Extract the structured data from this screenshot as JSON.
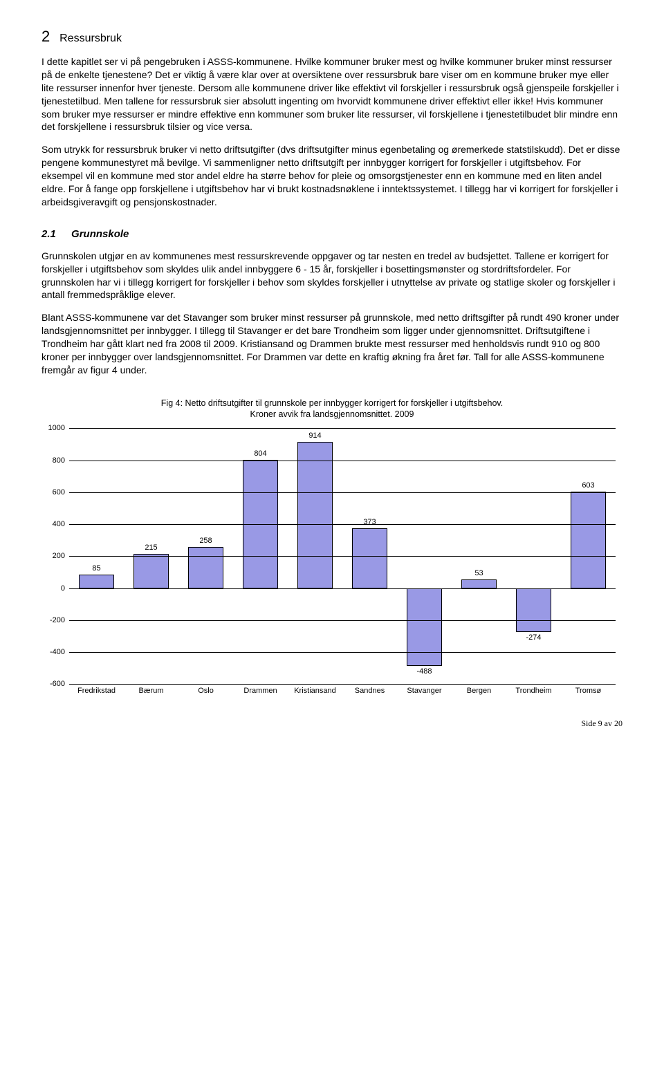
{
  "section": {
    "number": "2",
    "title": "Ressursbruk"
  },
  "paragraphs": {
    "p1": "I dette kapitlet ser vi på pengebruken i ASSS-kommunene. Hvilke kommuner bruker mest og hvilke kommuner bruker minst ressurser på de enkelte tjenestene? Det er viktig å være klar over at oversiktene over ressursbruk bare viser om en kommune bruker mye eller lite ressurser innenfor hver tjeneste. Dersom alle kommunene driver like effektivt vil forskjeller i ressursbruk også gjenspeile forskjeller i tjenestetilbud. Men tallene for ressursbruk sier absolutt ingenting om hvorvidt kommunene driver effektivt eller ikke! Hvis kommuner som bruker mye ressurser er mindre effektive enn kommuner som bruker lite ressurser, vil forskjellene i tjenestetilbudet blir mindre enn det forskjellene i ressursbruk tilsier og vice versa.",
    "p2": "Som utrykk for ressursbruk bruker vi netto driftsutgifter (dvs driftsutgifter minus egenbetaling og øremerkede statstilskudd). Det er disse pengene kommunestyret må bevilge. Vi sammenligner netto driftsutgift per innbygger korrigert for forskjeller i utgiftsbehov. For eksempel vil en kommune med stor andel eldre ha større behov for pleie og omsorgstjenester enn en kommune med en liten andel eldre. For å fange opp forskjellene i utgiftsbehov har vi brukt kostnadsnøklene i inntektssystemet. I tillegg har vi korrigert for forskjeller i arbeidsgiveravgift og pensjonskostnader.",
    "p3": "Grunnskolen utgjør en av kommunenes mest ressurskrevende oppgaver og tar nesten en tredel av budsjettet. Tallene er korrigert for forskjeller i utgiftsbehov som skyldes ulik andel innbyggere 6 - 15 år, forskjeller i bosettingsmønster og stordriftsfordeler. For grunnskolen har vi i tillegg korrigert for forskjeller i behov som skyldes forskjeller i utnyttelse av private og statlige skoler og forskjeller i antall fremmedspråklige elever.",
    "p4": "Blant ASSS-kommunene var det Stavanger som bruker minst ressurser på grunnskole, med netto driftsgifter på rundt 490 kroner under landsgjennomsnittet per innbygger. I tillegg til Stavanger er det bare Trondheim som ligger under gjennomsnittet. Driftsutgiftene i Trondheim har gått klart ned fra 2008 til 2009. Kristiansand og Drammen brukte mest ressurser med henholdsvis rundt 910 og 800 kroner per innbygger over landsgjennomsnittet. For Drammen var dette en kraftig økning fra året før. Tall for alle ASSS-kommunene fremgår av figur 4 under."
  },
  "subsection": {
    "number": "2.1",
    "title": "Grunnskole"
  },
  "chart": {
    "title_line1": "Fig 4: Netto driftsutgifter til grunnskole per innbygger korrigert for forskjeller i utgiftsbehov.",
    "title_line2": "Kroner avvik fra landsgjennomsnittet. 2009",
    "ymin": -600,
    "ymax": 1000,
    "ystep": 200,
    "yticks": [
      1000,
      800,
      600,
      400,
      200,
      0,
      -200,
      -400,
      -600
    ],
    "categories": [
      "Fredrikstad",
      "Bærum",
      "Oslo",
      "Drammen",
      "Kristiansand",
      "Sandnes",
      "Stavanger",
      "Bergen",
      "Trondheim",
      "Tromsø"
    ],
    "values": [
      85,
      215,
      258,
      804,
      914,
      373,
      -488,
      53,
      -274,
      603
    ],
    "bar_color": "#9999e5",
    "bar_border": "#000000",
    "grid_color": "#000000",
    "background": "#ffffff",
    "label_fontsize": 11
  },
  "footer": "Side 9 av 20"
}
